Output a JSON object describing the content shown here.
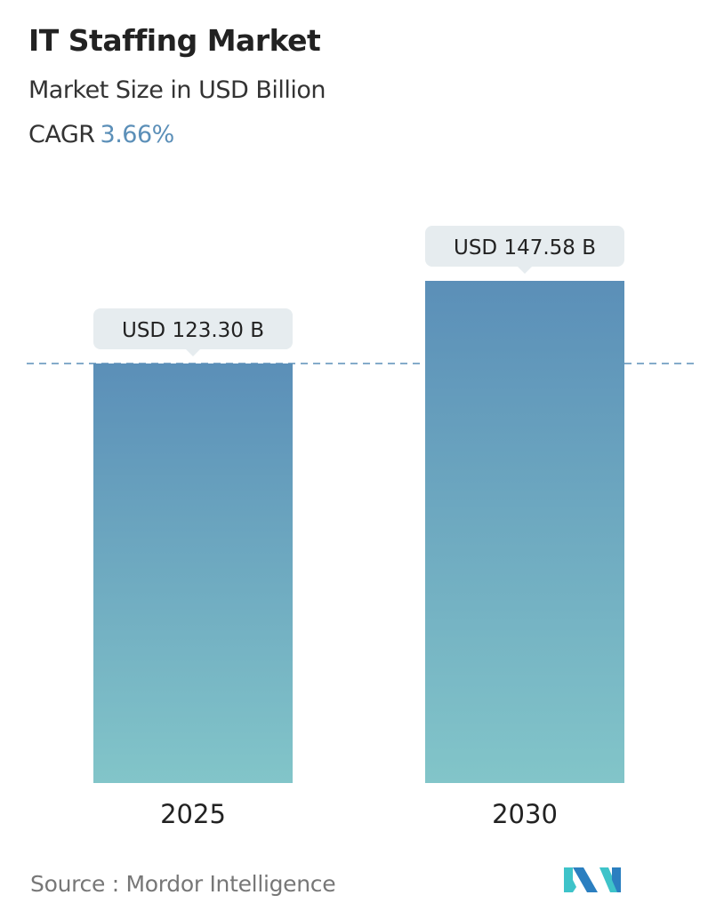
{
  "header": {
    "title": "IT Staffing Market",
    "subtitle": "Market Size in USD Billion",
    "cagr_label": "CAGR",
    "cagr_value": "3.66%"
  },
  "chart_data": {
    "type": "bar",
    "categories": [
      "2025",
      "2030"
    ],
    "values": [
      123.3,
      147.58
    ],
    "data_labels": [
      "USD 123.30 B",
      "USD 147.58 B"
    ],
    "title": "IT Staffing Market",
    "subtitle": "Market Size in USD Billion",
    "ylim": [
      0,
      147.58
    ],
    "grid": false,
    "reference_line": 123.3,
    "colors": {
      "bar_top": "#5b8fb8",
      "bar_bottom": "#82c5c9",
      "label_bg": "#e6ecef",
      "dash": "#5b8fb8",
      "accent": "#5b8fb8"
    }
  },
  "footer": {
    "source": "Source :  Mordor Intelligence",
    "logo_text": "Mordor Intelligence"
  }
}
